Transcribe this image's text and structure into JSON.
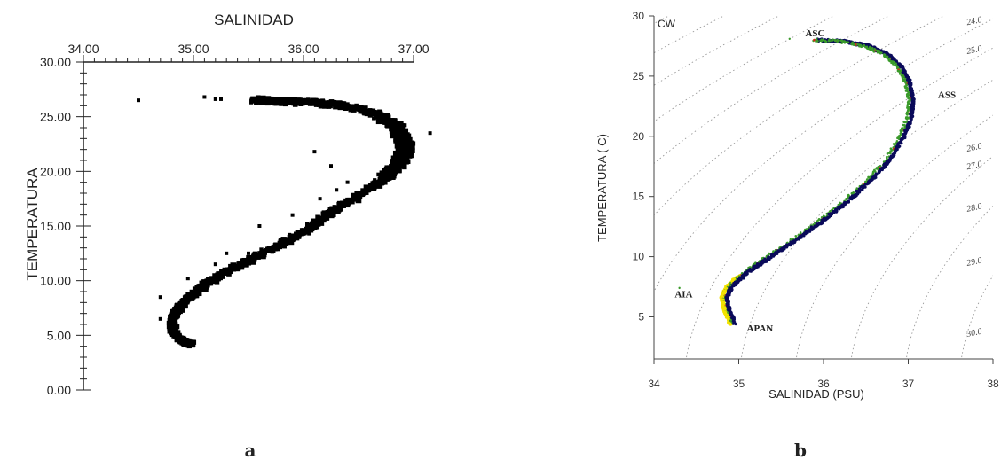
{
  "colors": {
    "ink": "#000000",
    "navy": "#0a0a5a",
    "green": "#3a9a2a",
    "yellow": "#f2e200",
    "red": "#d42a1a",
    "isopycnal": "#9a9a9a"
  },
  "panel_labels": [
    "a",
    "b"
  ],
  "chart_data": [
    {
      "type": "scatter",
      "title": "",
      "xlabel": "SALINIDAD",
      "ylabel": "TEMPERATURA",
      "xlim": [
        34.0,
        37.0
      ],
      "ylim": [
        0.0,
        30.0
      ],
      "x_ticks": [
        "34.00",
        "35.00",
        "36.00",
        "37.00"
      ],
      "y_ticks": [
        "0.00",
        "5.00",
        "10.00",
        "15.00",
        "20.00",
        "25.00",
        "30.00"
      ],
      "x_axis_position": "top",
      "grid": false,
      "series": [
        {
          "color": "#000000",
          "points": [
            [
              34.99,
              4.2
            ],
            [
              34.9,
              4.5
            ],
            [
              34.82,
              5.2
            ],
            [
              34.8,
              6.0
            ],
            [
              34.82,
              7.0
            ],
            [
              34.9,
              8.0
            ],
            [
              35.02,
              9.0
            ],
            [
              35.15,
              10.0
            ],
            [
              35.32,
              11.0
            ],
            [
              35.52,
              12.0
            ],
            [
              35.72,
              13.0
            ],
            [
              35.9,
              14.0
            ],
            [
              36.07,
              15.0
            ],
            [
              36.2,
              16.0
            ],
            [
              36.35,
              17.0
            ],
            [
              36.52,
              18.0
            ],
            [
              36.68,
              19.0
            ],
            [
              36.8,
              20.0
            ],
            [
              36.88,
              21.0
            ],
            [
              36.92,
              22.0
            ],
            [
              36.9,
              23.0
            ],
            [
              36.85,
              24.0
            ],
            [
              36.75,
              24.8
            ],
            [
              36.6,
              25.5
            ],
            [
              36.4,
              26.0
            ],
            [
              36.15,
              26.3
            ],
            [
              35.9,
              26.4
            ],
            [
              35.7,
              26.5
            ],
            [
              35.55,
              26.6
            ]
          ],
          "outliers": [
            [
              34.5,
              26.5
            ],
            [
              35.2,
              26.6
            ],
            [
              35.1,
              26.8
            ],
            [
              35.25,
              26.6
            ],
            [
              37.15,
              23.5
            ],
            [
              36.1,
              21.8
            ],
            [
              36.25,
              20.5
            ],
            [
              36.3,
              18.3
            ],
            [
              36.15,
              17.5
            ],
            [
              35.9,
              16.0
            ],
            [
              35.6,
              15.0
            ],
            [
              35.3,
              12.5
            ],
            [
              35.2,
              11.5
            ],
            [
              35.25,
              10.2
            ],
            [
              34.95,
              10.2
            ],
            [
              34.7,
              8.5
            ],
            [
              34.7,
              6.5
            ],
            [
              36.4,
              19.0
            ],
            [
              35.5,
              12.5
            ],
            [
              36.05,
              14.3
            ]
          ]
        }
      ]
    },
    {
      "type": "scatter",
      "title": "",
      "xlabel": "SALINIDAD (PSU)",
      "ylabel": "TEMPERATURA ( C)",
      "xlim": [
        34,
        38
      ],
      "ylim": [
        1.5,
        30
      ],
      "x_ticks": [
        "34",
        "35",
        "36",
        "37",
        "38"
      ],
      "y_ticks": [
        "5",
        "10",
        "15",
        "20",
        "25",
        "30"
      ],
      "grid": false,
      "corner_label": "CW",
      "isopycnals": [
        "24.0",
        "25.0",
        "26.0",
        "27.0",
        "28.0",
        "29.0",
        "30.0"
      ],
      "water_mass_labels": [
        {
          "text": "ASC",
          "x": 35.9,
          "y": 28.3
        },
        {
          "text": "ASS",
          "x": 37.35,
          "y": 23.2
        },
        {
          "text": "AIA",
          "x": 34.35,
          "y": 6.6
        },
        {
          "text": "APAN",
          "x": 35.25,
          "y": 3.8
        }
      ],
      "curve": [
        [
          35.9,
          28.0
        ],
        [
          36.2,
          27.9
        ],
        [
          36.5,
          27.5
        ],
        [
          36.72,
          26.8
        ],
        [
          36.88,
          25.8
        ],
        [
          36.98,
          24.5
        ],
        [
          37.02,
          23.0
        ],
        [
          37.0,
          21.5
        ],
        [
          36.9,
          19.8
        ],
        [
          36.72,
          17.8
        ],
        [
          36.5,
          16.2
        ],
        [
          36.22,
          14.4
        ],
        [
          35.92,
          12.8
        ],
        [
          35.6,
          11.2
        ],
        [
          35.3,
          9.8
        ],
        [
          35.05,
          8.6
        ],
        [
          34.88,
          7.5
        ],
        [
          34.82,
          6.6
        ],
        [
          34.85,
          5.6
        ],
        [
          34.92,
          4.4
        ]
      ],
      "scattered_points": [
        [
          35.6,
          28.1
        ],
        [
          35.92,
          28.1
        ],
        [
          34.9,
          7.6
        ],
        [
          34.3,
          7.4
        ]
      ]
    }
  ]
}
